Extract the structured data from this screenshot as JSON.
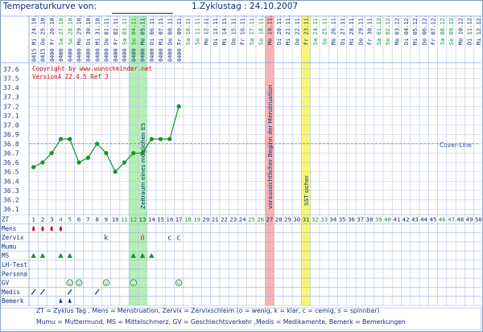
{
  "header": {
    "title": "Temperaturkurve von:",
    "cycle_day_text": "1.Zyklustag : 24.10.2007"
  },
  "copyright": "Copyright by www.wunschkinder.net",
  "version": "Version4 22.4.5 Ref 3",
  "annotations": {
    "fertile_window": "Zeitraum eines möglichen ES",
    "expected_menstruation": "voraussichtlicher Beginn der Menstruation",
    "sst": "SST sicher",
    "coverline": "Cover-Line"
  },
  "dates": [
    "Mi 24.10.",
    "Do 25.10.",
    "Fr 26.10.",
    "Sa 27.10.",
    "So 28.10.",
    "Mo 29.10.",
    "Di 30.10.",
    "Mi 31.10.",
    "Do 01.11.",
    "Fr 02.11.",
    "Sa 03.11.",
    "So 04.11.",
    "Mo 05.11.",
    "Di 06.11.",
    "Mi 07.11.",
    "Do 08.11.",
    "Fr 09.11.",
    "Sa 10.11.",
    "So 11.11.",
    "Mo 12.11.",
    "Di 13.11.",
    "Mi 14.11.",
    "Do 15.11.",
    "Fr 16.11.",
    "Sa 17.11.",
    "So 18.11.",
    "Mo 19.11.",
    "Di 20.11.",
    "Mi 21.11.",
    "Do 22.11.",
    "Fr 23.11.",
    "Sa 24.11.",
    "So 25.11.",
    "Mo 26.11.",
    "Di 27.11.",
    "Mi 28.11.",
    "Do 29.11.",
    "Fr 30.11.",
    "Sa 01.12.",
    "So 02.12.",
    "Mo 03.12.",
    "Di 04.12.",
    "Mi 05.12.",
    "Do 06.12.",
    "Fr 07.12.",
    "Sa 08.12.",
    "So 09.12.",
    "Mo 10.12.",
    "Di 11.12.",
    "Mi 12.12."
  ],
  "times": [
    "0415",
    "0415",
    "0400",
    "0400",
    "0400",
    "0400",
    "0400",
    "0400",
    "0400",
    "0400",
    "0400",
    "0400",
    "0400",
    "0400",
    "0400",
    "0400",
    "0400"
  ],
  "temp_labels": [
    "37.6",
    "37.5",
    "37.4",
    "37.3",
    "37.2",
    "37.1",
    "37.0",
    "36.9",
    "36.8",
    "36.7",
    "36.6",
    "36.5",
    "36.4",
    "36.3",
    "36.2",
    "36.1"
  ],
  "row_labels": [
    "ZT",
    "Mens",
    "Zervix",
    "Mumu",
    "MS",
    "LH-Test",
    "Persona",
    "GV",
    "Medis",
    "Bemerk"
  ],
  "chart_data": {
    "type": "line",
    "title": "Temperaturkurve",
    "xlabel": "ZT",
    "ylabel": "",
    "ylim": [
      36.05,
      37.65
    ],
    "x": [
      1,
      2,
      3,
      4,
      5,
      6,
      7,
      8,
      9,
      10,
      11,
      12,
      13,
      14,
      15,
      16,
      17
    ],
    "series": [
      {
        "values": [
          36.55,
          36.6,
          36.7,
          36.85,
          36.85,
          36.6,
          36.65,
          36.8,
          36.7,
          36.5,
          36.6,
          36.7,
          36.7,
          36.85,
          36.85,
          36.85,
          37.2
        ]
      }
    ],
    "coverline": 36.8
  },
  "rows": {
    "mens": {
      "days": [
        1,
        2,
        3,
        4
      ]
    },
    "zervix": [
      {
        "day": 9,
        "v": "k"
      },
      {
        "day": 13,
        "v": "ó"
      },
      {
        "day": 16,
        "v": "c"
      },
      {
        "day": 17,
        "v": "c"
      }
    ],
    "ms": {
      "days": [
        1,
        2,
        4,
        5,
        12,
        13,
        14
      ]
    },
    "gv": {
      "days": [
        5,
        6,
        9,
        12,
        17
      ]
    },
    "medis": {
      "days": [
        1,
        2,
        5,
        8
      ]
    },
    "bemerk": {
      "days": [
        4,
        5
      ]
    }
  },
  "legend": {
    "line1": "ZT = Zyklus Tag , Mens = Menstruation, Zervix = Zervixschleim (o = wenig, k = klar, c = cemig, s = spinnbar)",
    "line2": "Mumu = Muttermund, MS = Mittelschmerz, GV = Geschlechtsverkehr ,Medis = Medikamente, Bemerk = Bemerkungen"
  },
  "colors": {
    "fertile": "#b6eeb6",
    "menstruation": "#f7b2b2",
    "sst": "#f5f57a",
    "line": "#16912b",
    "mens_icon": "#e01010",
    "ms_icon": "#16912b",
    "grid": "#b8c3e6"
  }
}
